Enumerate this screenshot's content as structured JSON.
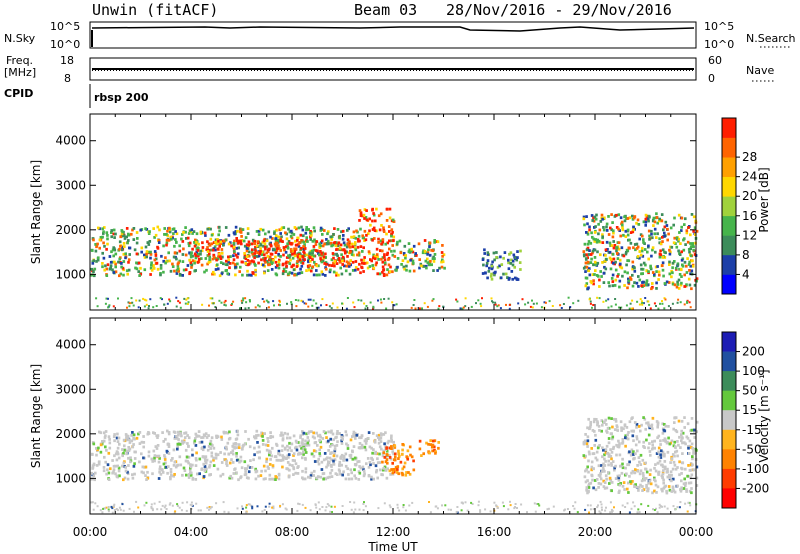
{
  "header": {
    "station": "Unwin (fitACF)",
    "beam": "Beam 03",
    "dates": "28/Nov/2016 - 29/Nov/2016"
  },
  "status_panels": {
    "nsky_label": "N.Sky",
    "nsky_ticks": [
      "10^5",
      "10^0"
    ],
    "nsearch_ticks": [
      "10^5",
      "10^0"
    ],
    "nsearch_label": "N.Search",
    "freq_label_1": "Freq.",
    "freq_label_2": "[MHz]",
    "freq_ticks": [
      "18",
      "8"
    ],
    "nave_ticks": [
      "60",
      "0"
    ],
    "nave_label": "Nave",
    "cpid_label": "CPID",
    "cpid_value": "rbsp 200"
  },
  "colors": {
    "power": [
      "#0000ff",
      "#1c3fa8",
      "#3c8c5a",
      "#46b44b",
      "#a0d23c",
      "#ffd700",
      "#ffa000",
      "#ff6400",
      "#ff1e00"
    ],
    "velocity": [
      "#1c1cb4",
      "#2050a0",
      "#3c8c5a",
      "#64c83c",
      "#c8c8c8",
      "#ffb41e",
      "#ff8200",
      "#ff3c00",
      "#ff0000"
    ]
  },
  "chart_data": [
    {
      "type": "heatmap",
      "name": "power",
      "ylabel": "Slant Range [km]",
      "yticks": [
        1000,
        2000,
        3000,
        4000
      ],
      "ylim": [
        200,
        4600
      ],
      "colorbar_label": "Power [dB]",
      "colorbar_ticks": [
        "4",
        "8",
        "12",
        "16",
        "20",
        "24",
        "28"
      ],
      "echo_regions": [
        {
          "t0": 0.0,
          "t1": 10.5,
          "r0": 1000,
          "r1": 2100,
          "level": "mixed"
        },
        {
          "t0": 4.0,
          "t1": 10.5,
          "r0": 1200,
          "r1": 1800,
          "level": "strong"
        },
        {
          "t0": 10.5,
          "t1": 12.0,
          "r0": 1000,
          "r1": 2500,
          "level": "strong"
        },
        {
          "t0": 12.0,
          "t1": 14.0,
          "r0": 1100,
          "r1": 1800,
          "level": "mixed"
        },
        {
          "t0": 15.5,
          "t1": 17.0,
          "r0": 900,
          "r1": 1600,
          "level": "weak"
        },
        {
          "t0": 19.5,
          "t1": 24.0,
          "r0": 700,
          "r1": 2400,
          "level": "mixed"
        }
      ]
    },
    {
      "type": "heatmap",
      "name": "velocity",
      "ylabel": "Slant Range [km]",
      "xlabel": "Time UT",
      "xticks": [
        "00:00",
        "04:00",
        "08:00",
        "12:00",
        "16:00",
        "20:00",
        "00:00"
      ],
      "xlim": [
        0,
        24
      ],
      "yticks": [
        1000,
        2000,
        3000,
        4000
      ],
      "ylim": [
        200,
        4600
      ],
      "colorbar_label": "Velocity [m s⁻¹]",
      "colorbar_ticks": [
        "200",
        "100",
        "50",
        "15",
        "-15",
        "-50",
        "-100",
        "-200"
      ],
      "echo_regions": [
        {
          "t0": 0.0,
          "t1": 12.0,
          "r0": 1000,
          "r1": 2100,
          "level": "near-zero"
        },
        {
          "t0": 11.5,
          "t1": 12.8,
          "r0": 1100,
          "r1": 1800,
          "level": "negative"
        },
        {
          "t0": 13.0,
          "t1": 13.8,
          "r0": 1500,
          "r1": 1900,
          "level": "negative"
        },
        {
          "t0": 19.5,
          "t1": 24.0,
          "r0": 700,
          "r1": 2400,
          "level": "near-zero"
        }
      ]
    }
  ]
}
